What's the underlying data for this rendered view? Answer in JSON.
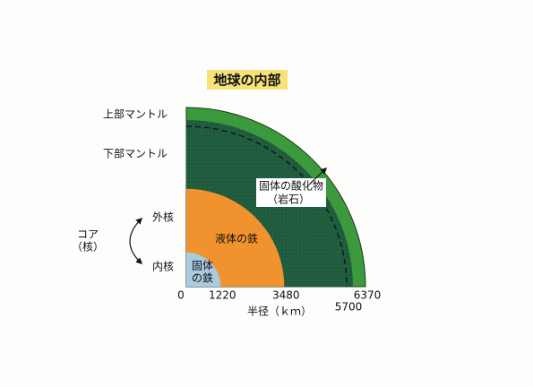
{
  "title": "地球の内部",
  "layers": {
    "upper_mantle": "上部マントル",
    "lower_mantle": "下部マントル",
    "outer_core": "外核",
    "inner_core": "内核",
    "core": [
      "コア",
      "（核）"
    ]
  },
  "regions": {
    "solid_iron": [
      "固体",
      "の鉄"
    ],
    "liquid_iron": "液体の鉄",
    "solid_oxide": [
      "固体の酸化物",
      "（岩石）"
    ]
  },
  "radii": [
    0,
    1220,
    3480,
    5700,
    6370
  ],
  "axis_label": "半径（ｋｍ）"
}
